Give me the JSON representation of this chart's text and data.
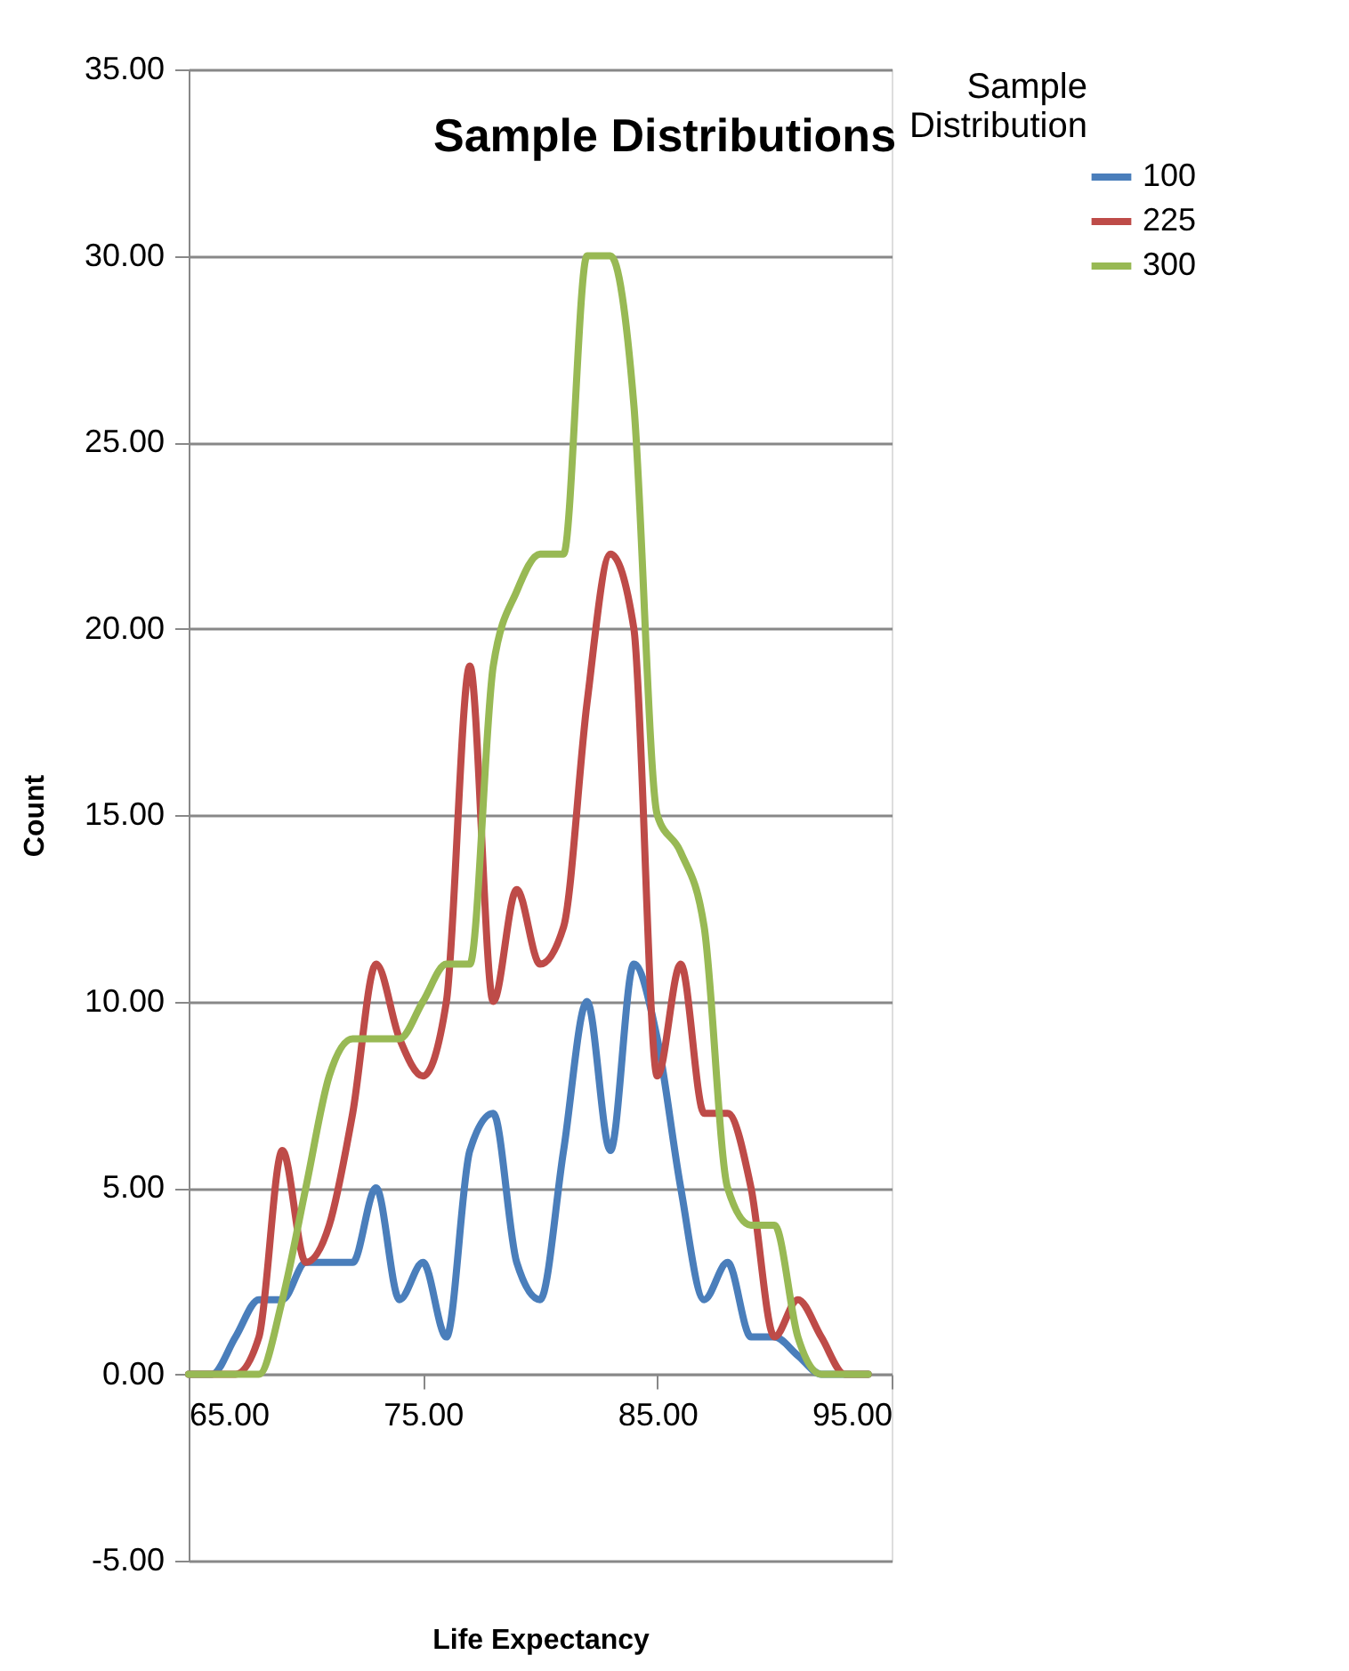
{
  "chart_data": {
    "type": "line",
    "title": "Sample Distributions",
    "xlabel": "Life Expectancy",
    "ylabel": "Count",
    "legend_title": "Sample Distribution",
    "x": [
      65,
      66,
      67,
      68,
      69,
      70,
      71,
      72,
      73,
      74,
      75,
      76,
      77,
      78,
      79,
      80,
      81,
      82,
      83,
      84,
      85,
      86,
      87,
      88,
      89,
      90,
      91,
      92,
      93,
      94
    ],
    "series": [
      {
        "name": "100",
        "color": "#4a7ebb",
        "values": [
          0,
          0,
          1,
          2,
          2,
          3,
          3,
          3,
          5,
          2,
          3,
          1,
          6,
          7,
          3,
          2,
          6,
          10,
          6,
          11,
          9,
          5,
          2,
          3,
          1,
          1,
          0.5,
          0,
          0,
          0
        ]
      },
      {
        "name": "225",
        "color": "#be4b48",
        "values": [
          0,
          0,
          0,
          1,
          6,
          3,
          4,
          7,
          11,
          9,
          8,
          10,
          19,
          10,
          13,
          11,
          12,
          18,
          22,
          20,
          8,
          11,
          7,
          7,
          5,
          1,
          2,
          1,
          0,
          0
        ]
      },
      {
        "name": "300",
        "color": "#98b954",
        "values": [
          0,
          0,
          0,
          0,
          2,
          5,
          8,
          9,
          9,
          9,
          10,
          11,
          11,
          19,
          21,
          22,
          22,
          30,
          30,
          26,
          15,
          14,
          12,
          5,
          4,
          4,
          1,
          0,
          0,
          0
        ]
      }
    ],
    "xlim": [
      65,
      95
    ],
    "ylim": [
      -5,
      35
    ],
    "xticks": [
      {
        "value": 65,
        "label": "65.00"
      },
      {
        "value": 75,
        "label": "75.00"
      },
      {
        "value": 85,
        "label": "85.00"
      },
      {
        "value": 95,
        "label": "95.00"
      }
    ],
    "yticks": [
      {
        "value": -5,
        "label": "-5.00"
      },
      {
        "value": 0,
        "label": "0.00"
      },
      {
        "value": 5,
        "label": "5.00"
      },
      {
        "value": 10,
        "label": "10.00"
      },
      {
        "value": 15,
        "label": "15.00"
      },
      {
        "value": 20,
        "label": "20.00"
      },
      {
        "value": 25,
        "label": "25.00"
      },
      {
        "value": 30,
        "label": "30.00"
      },
      {
        "value": 35,
        "label": "35.00"
      }
    ],
    "grid": "y",
    "legend": "right",
    "marker": "none",
    "line_style": "solid"
  }
}
